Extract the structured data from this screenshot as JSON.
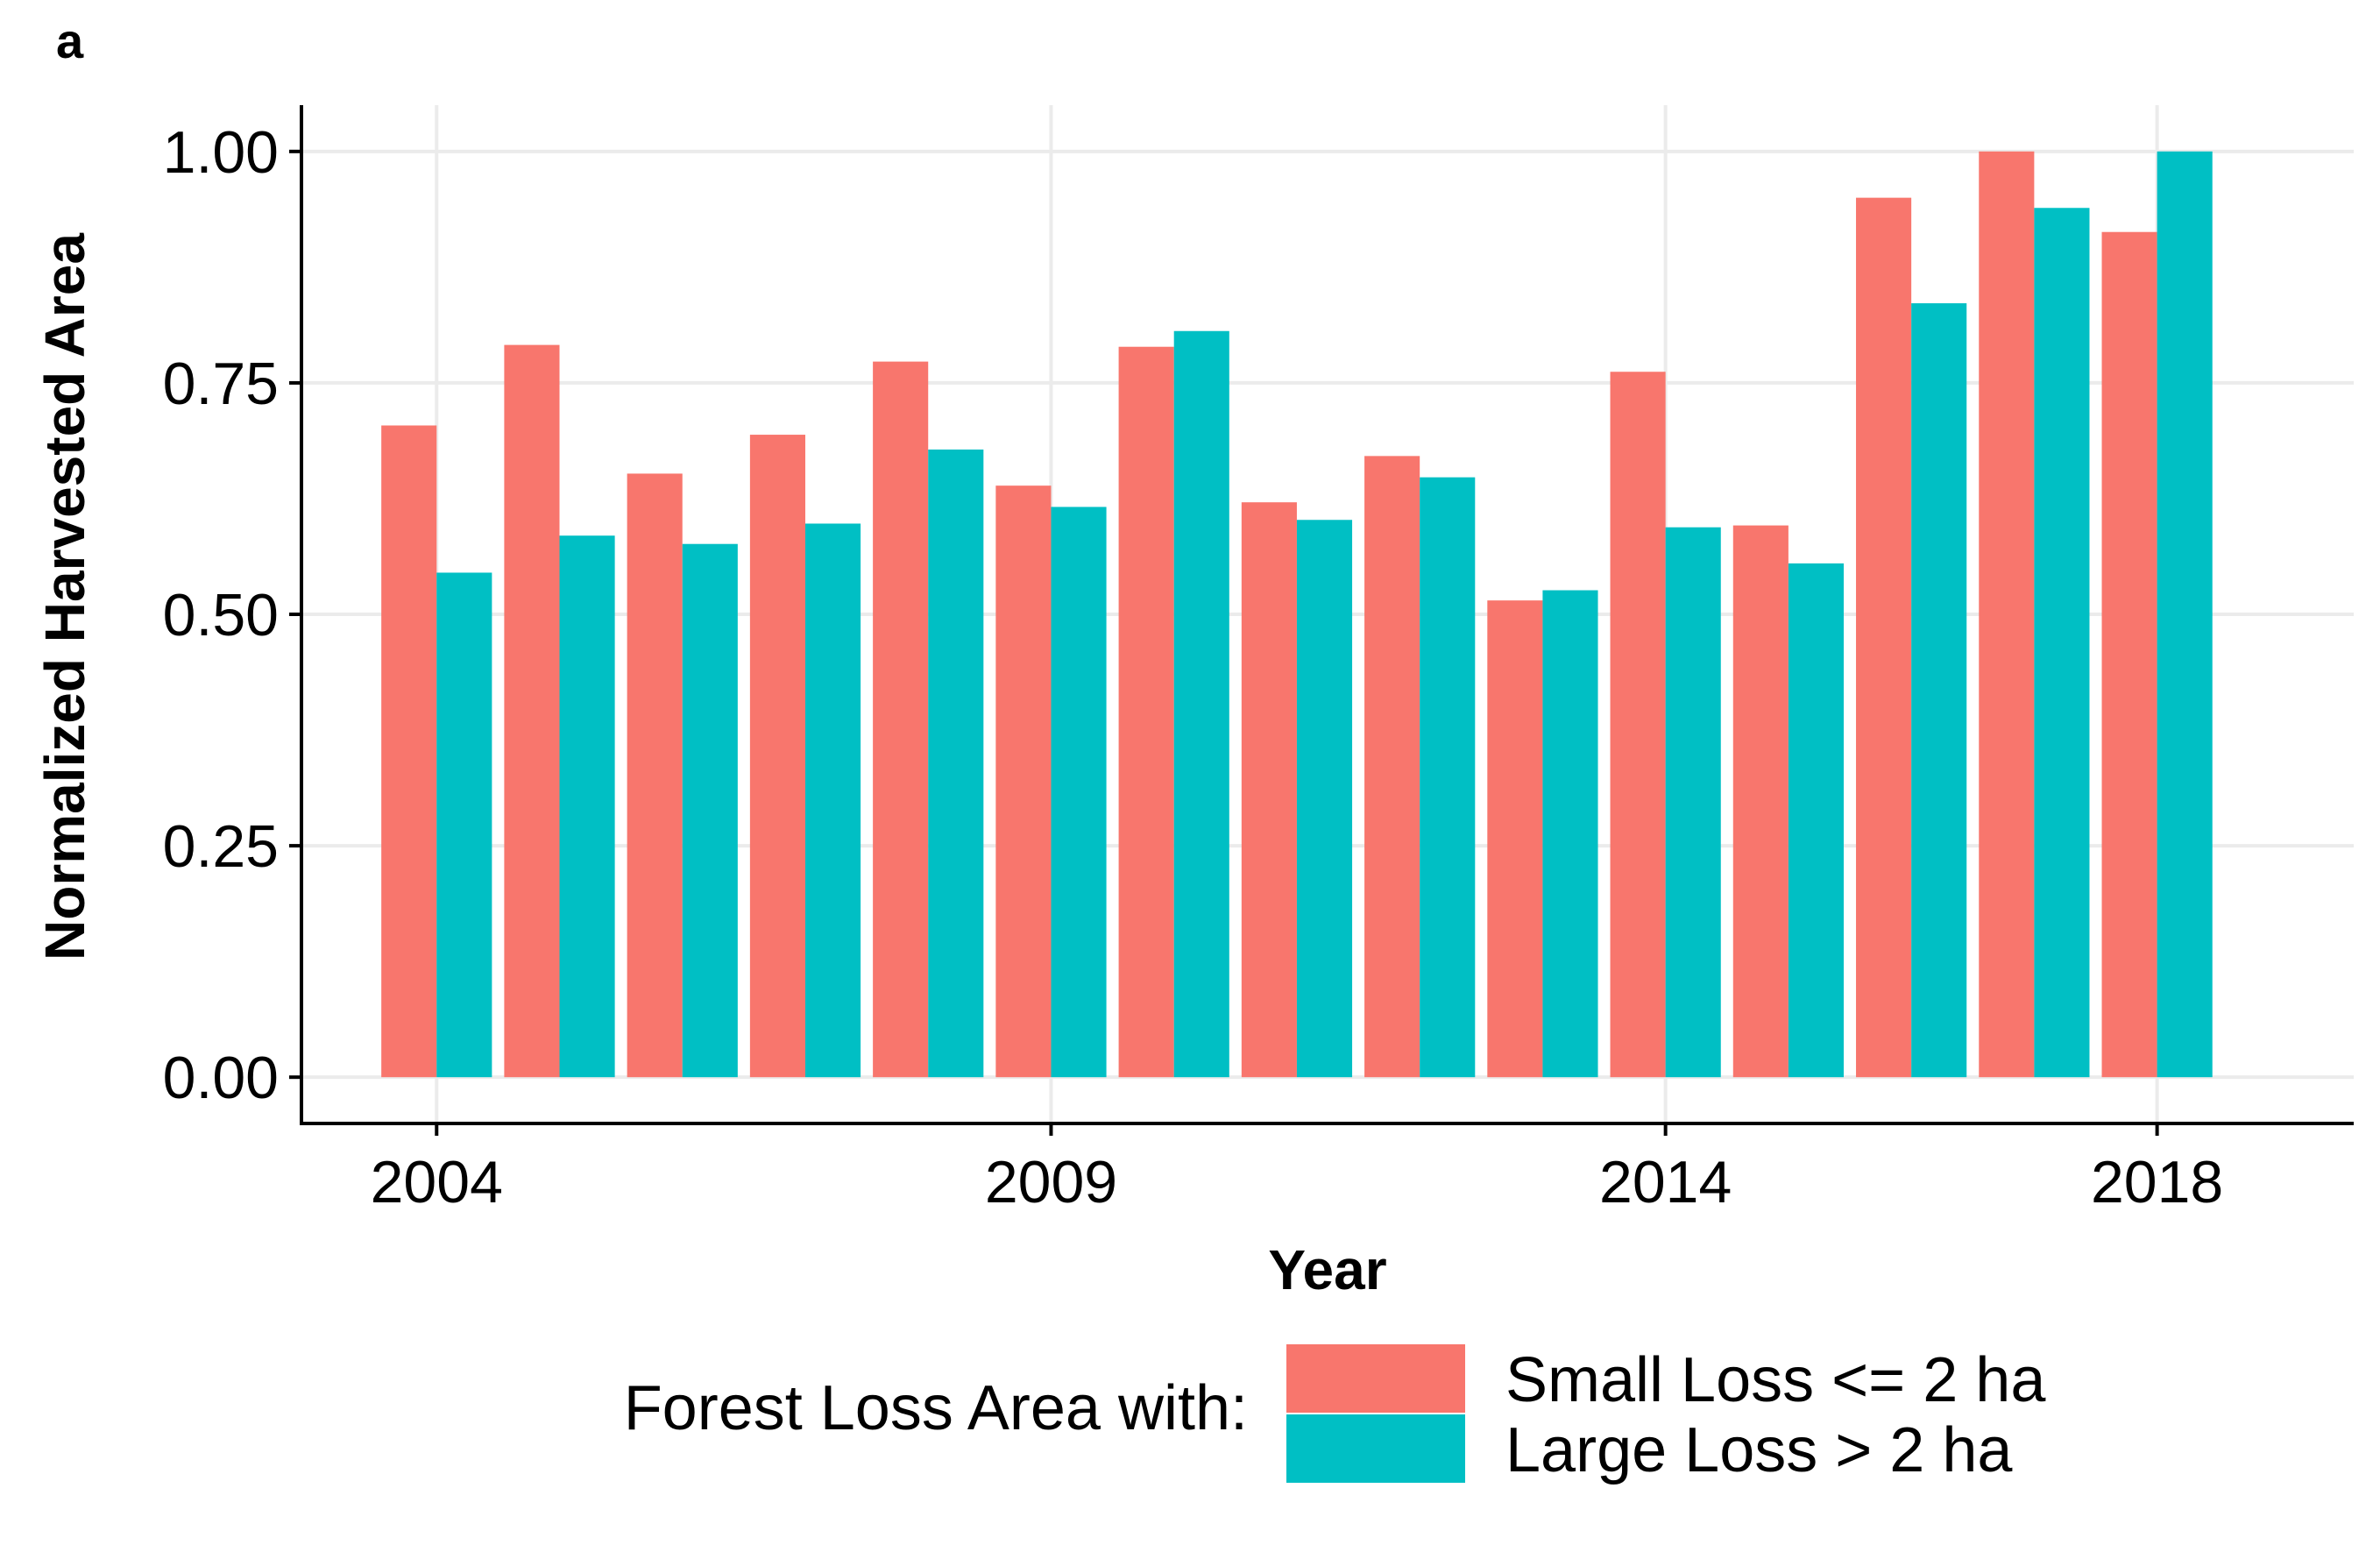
{
  "chart_data": {
    "type": "bar",
    "panel_label": "a",
    "xlabel": "Year",
    "ylabel": "Normalized Harvested Area",
    "categories": [
      2004,
      2005,
      2006,
      2007,
      2008,
      2009,
      2010,
      2011,
      2012,
      2013,
      2014,
      2015,
      2016,
      2017,
      2018
    ],
    "x_tick_labels": [
      "2004",
      "2009",
      "2014",
      "2018"
    ],
    "x_tick_values": [
      2004,
      2009,
      2014,
      2018
    ],
    "y_tick_labels": [
      "0.00",
      "0.25",
      "0.50",
      "0.75",
      "1.00"
    ],
    "y_tick_values": [
      0,
      0.25,
      0.5,
      0.75,
      1.0
    ],
    "ylim": [
      -0.05,
      1.05
    ],
    "xlim": [
      2002.9,
      2019.6
    ],
    "grid": true,
    "legend_position": "bottom",
    "legend_title": "Forest Loss Area with:",
    "series": [
      {
        "name": "Small Loss <= 2 ha",
        "color": "#F8766D",
        "values": [
          0.704,
          0.791,
          0.652,
          0.694,
          0.773,
          0.639,
          0.789,
          0.621,
          0.671,
          0.515,
          0.762,
          0.596,
          0.95,
          1.0,
          0.913
        ]
      },
      {
        "name": "Large Loss > 2 ha",
        "color": "#00BFC4",
        "values": [
          0.545,
          0.585,
          0.576,
          0.598,
          0.678,
          0.616,
          0.806,
          0.602,
          0.648,
          0.526,
          0.594,
          0.555,
          0.836,
          0.939,
          1.0
        ]
      }
    ]
  }
}
